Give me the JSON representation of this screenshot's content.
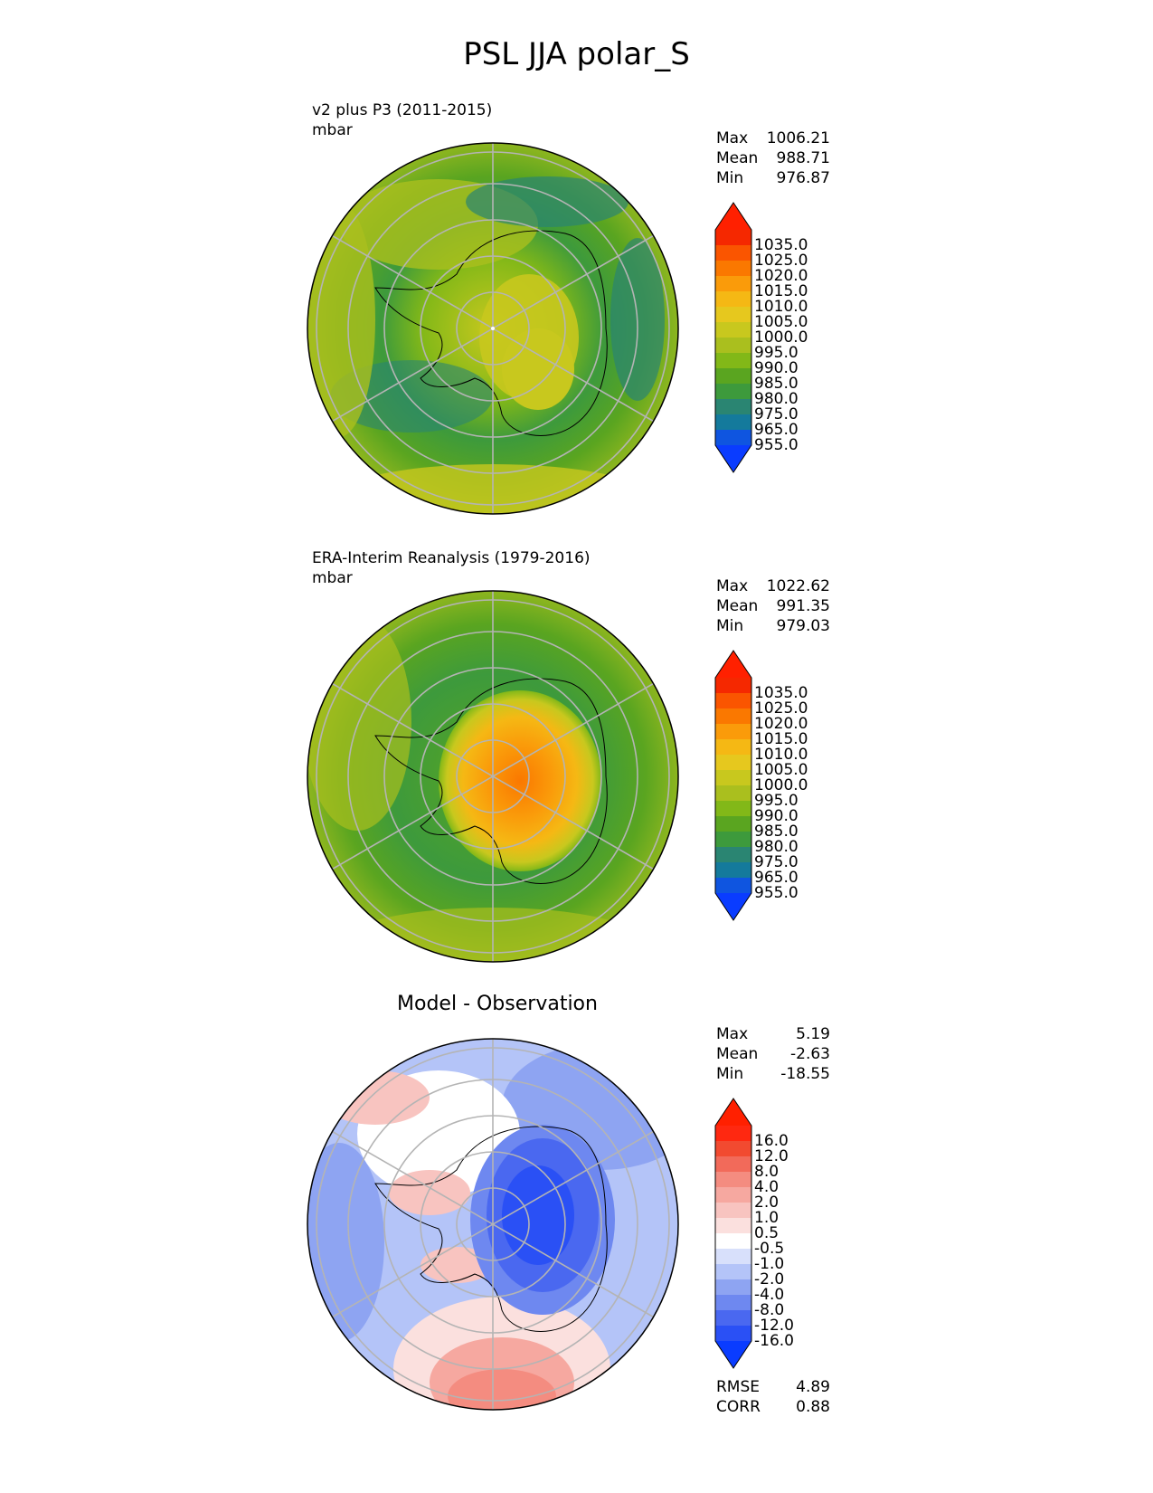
{
  "figure": {
    "title": "PSL JJA polar_S"
  },
  "panels": [
    {
      "title_line1": "v2 plus P3 (2011-2015)",
      "units": "mbar",
      "stats": {
        "max_label": "Max",
        "max": "1006.21",
        "mean_label": "Mean",
        "mean": "988.71",
        "min_label": "Min",
        "min": "976.87"
      },
      "colorbar_ticks": [
        "1035.0",
        "1025.0",
        "1020.0",
        "1015.0",
        "1010.0",
        "1005.0",
        "1000.0",
        "995.0",
        "990.0",
        "985.0",
        "980.0",
        "975.0",
        "965.0",
        "955.0"
      ]
    },
    {
      "title_line1": "ERA-Interim Reanalysis (1979-2016)",
      "units": "mbar",
      "stats": {
        "max_label": "Max",
        "max": "1022.62",
        "mean_label": "Mean",
        "mean": "991.35",
        "min_label": "Min",
        "min": "979.03"
      },
      "colorbar_ticks": [
        "1035.0",
        "1025.0",
        "1020.0",
        "1015.0",
        "1010.0",
        "1005.0",
        "1000.0",
        "995.0",
        "990.0",
        "985.0",
        "980.0",
        "975.0",
        "965.0",
        "955.0"
      ]
    },
    {
      "title_center": "Model - Observation",
      "stats": {
        "max_label": "Max",
        "max": "5.19",
        "mean_label": "Mean",
        "mean": "-2.63",
        "min_label": "Min",
        "min": "-18.55"
      },
      "colorbar_ticks": [
        "16.0",
        "12.0",
        "8.0",
        "4.0",
        "2.0",
        "1.0",
        "0.5",
        "-0.5",
        "-1.0",
        "-2.0",
        "-4.0",
        "-8.0",
        "-12.0",
        "-16.0"
      ],
      "metrics": {
        "rmse_label": "RMSE",
        "rmse": "4.89",
        "corr_label": "CORR",
        "corr": "0.88"
      }
    }
  ],
  "colormaps": {
    "absolute": [
      "#0a3cff",
      "#0f55e0",
      "#147a9c",
      "#2a8572",
      "#3d9a3c",
      "#5aa520",
      "#82b818",
      "#aabf1e",
      "#c8c81e",
      "#e6c81e",
      "#f5b814",
      "#fa9b0a",
      "#fa7800",
      "#fa5500",
      "#f52800",
      "#ff2000"
    ],
    "difference": [
      "#0a3cff",
      "#2a50f5",
      "#4a68f0",
      "#6e88f0",
      "#8ea4f2",
      "#b4c4f8",
      "#d8e0fb",
      "#ffffff",
      "#fbe0de",
      "#f8c4c0",
      "#f6a8a0",
      "#f48c80",
      "#f26a5a",
      "#f24a30",
      "#ff2810",
      "#ff2000"
    ]
  }
}
